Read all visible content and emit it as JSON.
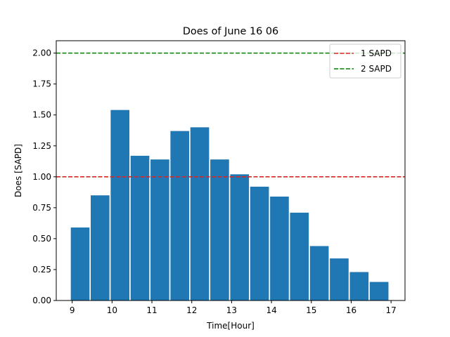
{
  "chart_data": {
    "type": "bar",
    "title": "Does of June 16 06",
    "xlabel": "Time[Hour]",
    "ylabel": "Does [SAPD]",
    "xlim": [
      8.6,
      17.35
    ],
    "ylim": [
      0,
      2.1
    ],
    "xticks": [
      9,
      10,
      11,
      12,
      13,
      14,
      15,
      16,
      17
    ],
    "yticks": [
      0.0,
      0.25,
      0.5,
      0.75,
      1.0,
      1.25,
      1.5,
      1.75,
      2.0
    ],
    "bar_color": "#1f77b4",
    "bar_width": 0.47,
    "bars": [
      {
        "x": 9.2,
        "value": 0.59
      },
      {
        "x": 9.7,
        "value": 0.85
      },
      {
        "x": 10.2,
        "value": 1.54
      },
      {
        "x": 10.7,
        "value": 1.17
      },
      {
        "x": 11.2,
        "value": 1.14
      },
      {
        "x": 11.7,
        "value": 1.37
      },
      {
        "x": 12.2,
        "value": 1.4
      },
      {
        "x": 12.7,
        "value": 1.14
      },
      {
        "x": 13.2,
        "value": 1.02
      },
      {
        "x": 13.7,
        "value": 0.92
      },
      {
        "x": 14.2,
        "value": 0.84
      },
      {
        "x": 14.7,
        "value": 0.71
      },
      {
        "x": 15.2,
        "value": 0.44
      },
      {
        "x": 15.7,
        "value": 0.34
      },
      {
        "x": 16.2,
        "value": 0.23
      },
      {
        "x": 16.7,
        "value": 0.15
      }
    ],
    "reference_lines": [
      {
        "name": "1 SAPD",
        "y": 1.0,
        "color": "#d62728",
        "style": "dashed"
      },
      {
        "name": "2 SAPD",
        "y": 2.0,
        "color": "#008000",
        "style": "dashed"
      }
    ],
    "legend_position": "top-right",
    "grid": false
  }
}
